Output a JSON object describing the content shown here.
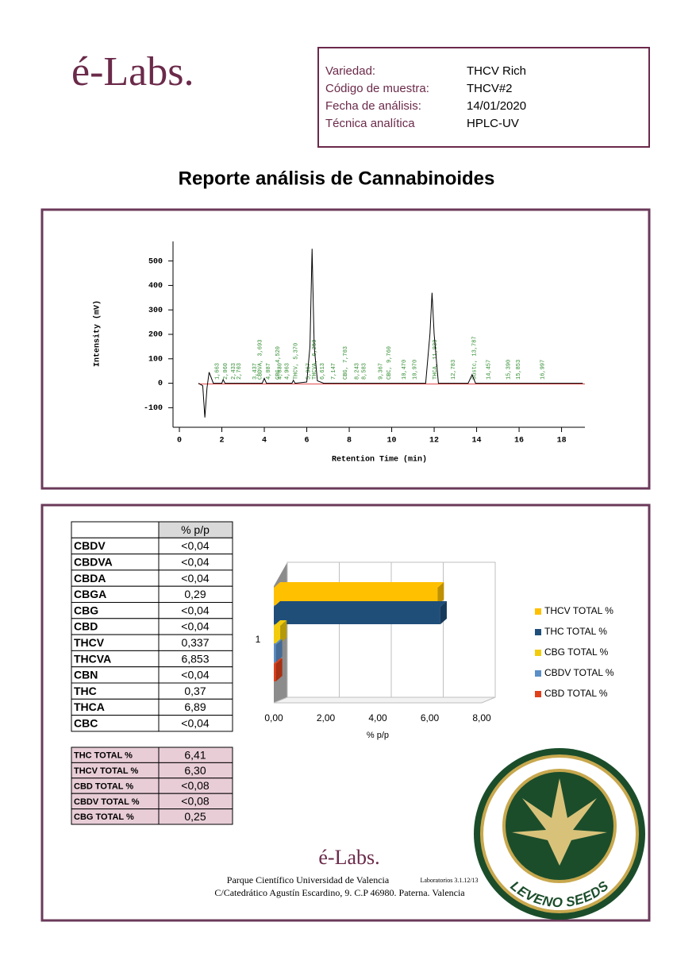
{
  "header": {
    "logo": "é-Labs.",
    "info": [
      {
        "label": "Variedad:",
        "value": "THCV Rich"
      },
      {
        "label": "Código de muestra:",
        "value": "THCV#2"
      },
      {
        "label": "Fecha de análisis:",
        "value": "14/01/2020"
      },
      {
        "label": "Técnica analítica",
        "value": "HPLC-UV"
      }
    ]
  },
  "title": "Reporte análisis de Cannabinoides",
  "chromatogram": {
    "type": "line",
    "xlabel": "Retention Time (min)",
    "ylabel": "Intensity (mV)",
    "xlim": [
      -0.3,
      19.1
    ],
    "ylim": [
      -180,
      580
    ],
    "xticks": [
      0,
      2,
      4,
      6,
      8,
      10,
      12,
      14,
      16,
      18
    ],
    "yticks": [
      -100,
      0,
      100,
      200,
      300,
      400,
      500
    ],
    "color": "#000000",
    "trace": {
      "x": [
        0.9,
        1.1,
        1.2,
        1.3,
        1.4,
        1.6,
        2.0,
        2.06,
        2.15,
        3.9,
        4.0,
        4.1,
        5.3,
        5.37,
        5.45,
        6.0,
        6.15,
        6.25,
        6.35,
        6.5,
        6.8,
        11.6,
        11.8,
        11.9,
        12.0,
        12.2,
        13.6,
        13.787,
        13.95,
        19
      ],
      "y": [
        0,
        -10,
        -140,
        -20,
        45,
        0,
        0,
        15,
        0,
        0,
        20,
        0,
        0,
        12,
        0,
        5,
        150,
        550,
        150,
        10,
        0,
        0,
        200,
        370,
        200,
        0,
        0,
        35,
        0,
        0
      ]
    },
    "peak_color": "#2e8b2e",
    "peaks": [
      {
        "value": 1.663,
        "label": "1,663"
      },
      {
        "value": 2.06,
        "label": "2,060"
      },
      {
        "value": 2.433,
        "label": "2,433"
      },
      {
        "value": 2.703,
        "label": "2,703"
      },
      {
        "value": 3.437,
        "label": "3,437"
      },
      {
        "value": 3.693,
        "label": "CBDVA, 3,693"
      },
      {
        "value": 4.087,
        "label": "4,087"
      },
      {
        "value": 4.52,
        "label": "CBG, 4,520"
      },
      {
        "value": 4.63,
        "label": "4,630"
      },
      {
        "value": 4.963,
        "label": "4,963"
      },
      {
        "value": 5.37,
        "label": "THCV, 5,370"
      },
      {
        "value": 5.967,
        "label": "5,967"
      },
      {
        "value": 6.25,
        "label": "THCVA, 6,250"
      },
      {
        "value": 6.613,
        "label": "6,613"
      },
      {
        "value": 7.147,
        "label": "7,147"
      },
      {
        "value": 7.703,
        "label": "CBG, 7,703"
      },
      {
        "value": 8.243,
        "label": "8,243"
      },
      {
        "value": 8.583,
        "label": "8,583"
      },
      {
        "value": 9.367,
        "label": "9,367"
      },
      {
        "value": 9.76,
        "label": "CBC, 9,760"
      },
      {
        "value": 10.47,
        "label": "10,470"
      },
      {
        "value": 10.97,
        "label": "10,970"
      },
      {
        "value": 11.93,
        "label": "THCA, 11,930"
      },
      {
        "value": 12.783,
        "label": "12,783"
      },
      {
        "value": 13.787,
        "label": "Sustc, 13,787"
      },
      {
        "value": 14.457,
        "label": "14,457"
      },
      {
        "value": 15.39,
        "label": "15,390"
      },
      {
        "value": 15.853,
        "label": "15,853"
      },
      {
        "value": 16.997,
        "label": "16,997"
      }
    ]
  },
  "results": {
    "header": "% p/p",
    "rows": [
      [
        "CBDV",
        "<0,04"
      ],
      [
        "CBDVA",
        "<0,04"
      ],
      [
        "CBDA",
        "<0,04"
      ],
      [
        "CBGA",
        "0,29"
      ],
      [
        "CBG",
        "<0,04"
      ],
      [
        "CBD",
        "<0,04"
      ],
      [
        "THCV",
        "0,337"
      ],
      [
        "THCVA",
        "6,853"
      ],
      [
        "CBN",
        "<0,04"
      ],
      [
        "THC",
        "0,37"
      ],
      [
        "THCA",
        "6,89"
      ],
      [
        "CBC",
        "<0,04"
      ]
    ]
  },
  "totals": {
    "rows": [
      [
        "THC TOTAL %",
        "6,41"
      ],
      [
        "THCV TOTAL %",
        "6,30"
      ],
      [
        "CBD TOTAL %",
        "<0,08"
      ],
      [
        "CBDV TOTAL %",
        "<0,08"
      ],
      [
        "CBG TOTAL %",
        "0,25"
      ]
    ]
  },
  "chart_data": {
    "type": "bar",
    "orientation": "horizontal",
    "categories": [
      "1"
    ],
    "series": [
      {
        "name": "THCV TOTAL %",
        "color": "#ffc000",
        "values": [
          6.3
        ]
      },
      {
        "name": "THC TOTAL %",
        "color": "#1f4e79",
        "values": [
          6.41
        ]
      },
      {
        "name": "CBG TOTAL %",
        "color": "#f2cc0c",
        "values": [
          0.25
        ]
      },
      {
        "name": "CBDV TOTAL %",
        "color": "#5b8fc7",
        "values": [
          0.08
        ]
      },
      {
        "name": "CBD TOTAL %",
        "color": "#e0401a",
        "values": [
          0.08
        ]
      }
    ],
    "xlim": [
      0,
      8
    ],
    "xticks": [
      {
        "value": 0,
        "label": "0,00"
      },
      {
        "value": 2,
        "label": "2,00"
      },
      {
        "value": 4,
        "label": "4,00"
      },
      {
        "value": 6,
        "label": "6,00"
      },
      {
        "value": 8,
        "label": "8,00"
      }
    ],
    "xlabel": "% p/p",
    "legend": "right",
    "grid": true
  },
  "footer": {
    "logo": "é-Labs.",
    "line1": "Parque Científico Universidad de Valencia",
    "lab": "Laboratorios 3.1.12/13",
    "line2": "C/Catedrático Agustín Escardino, 9. C.P 46980. Paterna. Valencia"
  },
  "badge": "LEVENO SEEDS"
}
